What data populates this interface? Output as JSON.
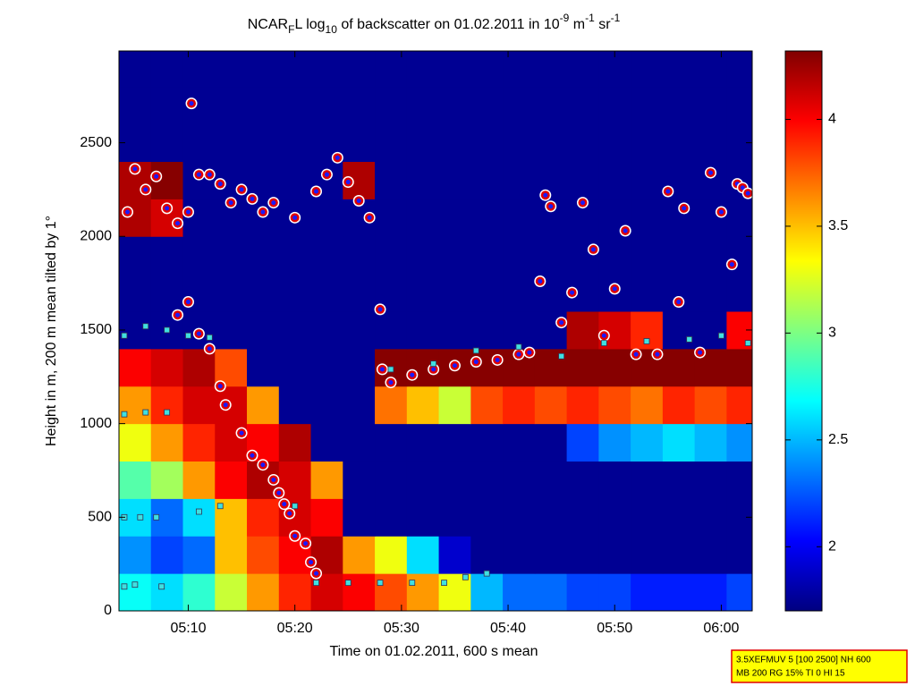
{
  "chart_data": {
    "type": "heatmap",
    "title": [
      "NCAR",
      "F",
      "L log",
      "10",
      " of backscatter on 01.02.2011 in 10",
      "-9",
      " m",
      "-1",
      " sr",
      "-1"
    ],
    "x_label": "Time on 01.02.2011, 600 s mean",
    "y_label": "Height in m, 200 m mean tilted by 1°",
    "xlim": [
      3.5,
      62.9
    ],
    "xticks": [
      {
        "value": 10,
        "label": "05:10"
      },
      {
        "value": 20,
        "label": "05:20"
      },
      {
        "value": 30,
        "label": "05:30"
      },
      {
        "value": 40,
        "label": "05:40"
      },
      {
        "value": 50,
        "label": "05:50"
      },
      {
        "value": 60,
        "label": "06:00"
      }
    ],
    "ylim": [
      0,
      2990
    ],
    "yticks": [
      0,
      500,
      1000,
      1500,
      2000,
      2500
    ],
    "clim": [
      1.7,
      4.32
    ],
    "cticks": [
      2,
      2.5,
      3,
      3.5,
      4
    ],
    "colormap": "jet",
    "x": [
      5,
      8,
      11,
      14,
      17,
      20,
      23,
      26,
      29,
      32,
      35,
      38,
      41,
      44,
      47,
      50,
      53,
      56,
      59,
      62
    ],
    "y": [
      100,
      300,
      500,
      700,
      900,
      1100,
      1300,
      1500,
      1700,
      1900,
      2100,
      2300,
      2500,
      2700,
      2900
    ],
    "z": [
      [
        2.7,
        2.6,
        2.8,
        3.2,
        3.6,
        3.9,
        4.1,
        4.0,
        3.8,
        3.6,
        3.3,
        2.5,
        2.3,
        2.3,
        2.2,
        2.2,
        2.1,
        2.1,
        2.1,
        2.2
      ],
      [
        2.4,
        2.2,
        2.3,
        3.5,
        3.8,
        4.0,
        4.2,
        3.6,
        3.3,
        2.6,
        1.9,
        1.75,
        1.75,
        1.75,
        1.75,
        1.75,
        1.75,
        1.75,
        1.75,
        1.75
      ],
      [
        2.6,
        2.3,
        2.6,
        3.5,
        3.9,
        4.1,
        4.0,
        1.75,
        1.75,
        1.75,
        1.75,
        1.75,
        1.75,
        1.75,
        1.75,
        1.75,
        1.75,
        1.75,
        1.75,
        1.75
      ],
      [
        2.9,
        3.1,
        3.6,
        4.0,
        4.2,
        4.1,
        3.6,
        1.75,
        1.75,
        1.75,
        1.75,
        1.75,
        1.75,
        1.75,
        1.75,
        1.75,
        1.75,
        1.75,
        1.75,
        1.75
      ],
      [
        3.3,
        3.6,
        3.9,
        4.1,
        4.0,
        4.2,
        1.75,
        1.75,
        1.75,
        1.75,
        1.75,
        1.75,
        1.75,
        1.75,
        2.2,
        2.4,
        2.5,
        2.6,
        2.5,
        2.4
      ],
      [
        3.6,
        3.9,
        4.1,
        4.1,
        3.6,
        1.75,
        1.75,
        1.75,
        3.7,
        3.5,
        3.2,
        3.8,
        3.9,
        3.8,
        3.9,
        3.8,
        3.7,
        3.9,
        3.8,
        3.9
      ],
      [
        4.0,
        4.1,
        4.2,
        3.8,
        1.75,
        1.75,
        1.75,
        1.75,
        4.3,
        4.3,
        4.3,
        4.3,
        4.3,
        4.3,
        4.3,
        4.3,
        4.3,
        4.3,
        4.3,
        4.3
      ],
      [
        1.75,
        1.75,
        1.75,
        1.75,
        1.75,
        1.75,
        1.75,
        1.75,
        1.75,
        1.75,
        1.75,
        1.75,
        1.75,
        1.75,
        4.2,
        4.1,
        3.9,
        1.75,
        1.75,
        4.0
      ],
      [
        1.75,
        1.75,
        1.75,
        1.75,
        1.75,
        1.75,
        1.75,
        1.75,
        1.75,
        1.75,
        1.75,
        1.75,
        1.75,
        1.75,
        1.75,
        1.75,
        1.75,
        1.75,
        1.75,
        1.75
      ],
      [
        1.75,
        1.75,
        1.75,
        1.75,
        1.75,
        1.75,
        1.75,
        1.75,
        1.75,
        1.75,
        1.75,
        1.75,
        1.75,
        1.75,
        1.75,
        1.75,
        1.75,
        1.75,
        1.75,
        1.75
      ],
      [
        4.2,
        4.1,
        1.75,
        1.75,
        1.75,
        1.75,
        1.75,
        1.75,
        1.75,
        1.75,
        1.75,
        1.75,
        1.75,
        1.75,
        1.75,
        1.75,
        1.75,
        1.75,
        1.75,
        1.75
      ],
      [
        4.2,
        4.3,
        1.75,
        1.75,
        1.75,
        1.75,
        1.75,
        4.2,
        1.75,
        1.75,
        1.75,
        1.75,
        1.75,
        1.75,
        1.75,
        1.75,
        1.75,
        1.75,
        1.75,
        1.75
      ],
      [
        1.75,
        1.75,
        1.75,
        1.75,
        1.75,
        1.75,
        1.75,
        1.75,
        1.75,
        1.75,
        1.75,
        1.75,
        1.75,
        1.75,
        1.75,
        1.75,
        1.75,
        1.75,
        1.75,
        1.75
      ],
      [
        1.75,
        1.75,
        1.75,
        1.75,
        1.75,
        1.75,
        1.75,
        1.75,
        1.75,
        1.75,
        1.75,
        1.75,
        1.75,
        1.75,
        1.75,
        1.75,
        1.75,
        1.75,
        1.75,
        1.75
      ],
      [
        1.75,
        1.75,
        1.75,
        1.75,
        1.75,
        1.75,
        1.75,
        1.75,
        1.75,
        1.75,
        1.75,
        1.75,
        1.75,
        1.75,
        1.75,
        1.75,
        1.75,
        1.75,
        1.75,
        1.75
      ]
    ],
    "overlays": [
      {
        "marker": "circle",
        "color": "#e00000",
        "x": [
          4.3,
          5,
          6,
          7,
          8,
          9,
          10,
          10.3,
          11,
          12,
          13,
          14,
          15,
          16,
          17,
          18,
          20,
          22,
          23,
          24,
          25,
          26,
          27,
          28,
          28.2,
          29,
          31,
          33,
          35,
          37,
          39,
          41,
          42,
          43,
          43.5,
          44,
          45,
          46,
          47,
          48,
          49,
          50,
          51,
          52,
          54,
          55,
          56,
          56.5,
          58,
          59,
          60,
          61,
          61.5,
          62,
          62.5,
          9,
          10,
          11,
          12,
          13,
          13.5,
          15,
          16,
          17,
          18,
          18.5,
          19,
          19.5,
          20,
          21,
          21.5,
          22
        ],
        "y": [
          2130,
          2360,
          2250,
          2320,
          2150,
          2070,
          2130,
          2710,
          2330,
          2330,
          2280,
          2180,
          2250,
          2200,
          2130,
          2180,
          2100,
          2240,
          2330,
          2420,
          2290,
          2190,
          2100,
          1610,
          1290,
          1220,
          1260,
          1290,
          1310,
          1330,
          1340,
          1370,
          1380,
          1760,
          2220,
          2160,
          1540,
          1700,
          2180,
          1930,
          1470,
          1720,
          2030,
          1370,
          1370,
          2240,
          1650,
          2150,
          1380,
          2340,
          2130,
          1850,
          2280,
          2260,
          2230,
          1580,
          1650,
          1480,
          1400,
          1200,
          1100,
          950,
          830,
          780,
          700,
          630,
          570,
          520,
          400,
          360,
          260,
          200
        ]
      },
      {
        "marker": "square",
        "color": "#40e0e0",
        "x": [
          4,
          5.5,
          7,
          4,
          6,
          8,
          4,
          6,
          8,
          10,
          12,
          4,
          5,
          7.5,
          11,
          13,
          22,
          25,
          28,
          31,
          34,
          36,
          38,
          20,
          29,
          33,
          37,
          41,
          45,
          49,
          53,
          57,
          60,
          62.5
        ],
        "y": [
          500,
          500,
          500,
          1050,
          1060,
          1060,
          1470,
          1520,
          1500,
          1470,
          1460,
          130,
          140,
          130,
          530,
          560,
          150,
          150,
          150,
          150,
          150,
          180,
          200,
          560,
          1290,
          1320,
          1390,
          1410,
          1360,
          1430,
          1440,
          1450,
          1470,
          1430
        ]
      }
    ],
    "annotation": [
      "3.5XEFMUV 5 [100 2500] NH 600",
      "MB 200 RG 15% TI 0 HI 15"
    ]
  }
}
